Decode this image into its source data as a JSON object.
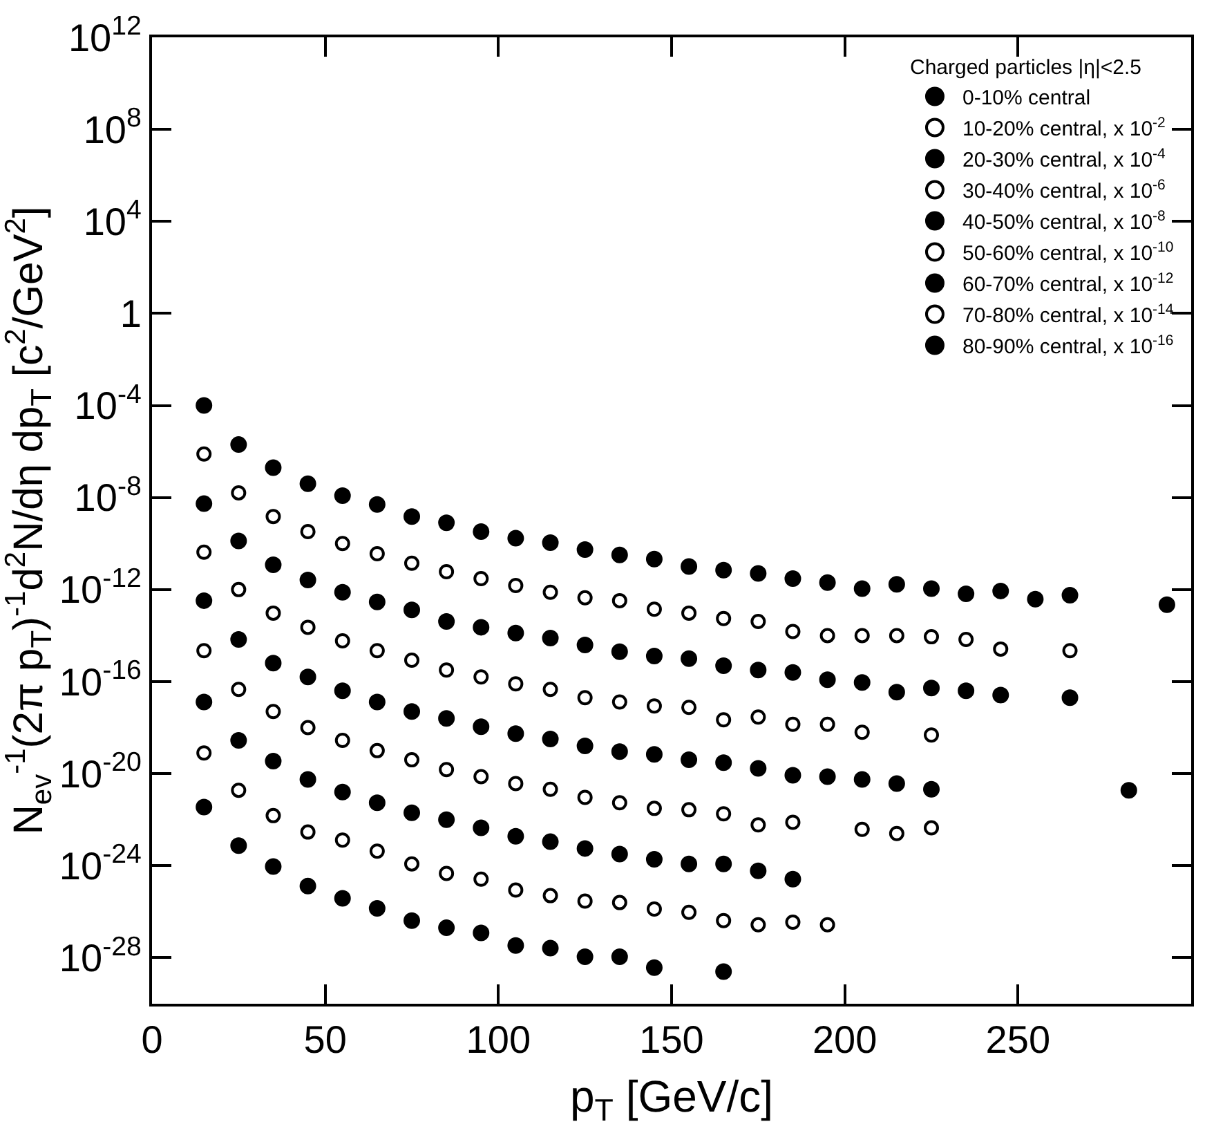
{
  "chart_data": {
    "type": "scatter",
    "xlabel": "p$_{T}$ [GeV/c]",
    "ylabel": "N$_{ev}$$^{-1}$(2π p$_{T}$)$^{-1}$d$^{2}$N/dη dp$_{T}$ [c$^{2}$/GeV$^{2}$]",
    "legend_title": "Charged particles |η|<2.5",
    "legend": "top right",
    "log": "y",
    "xlim": [
      0,
      300
    ],
    "xticks": [
      0,
      50,
      100,
      150,
      200,
      250
    ],
    "ylim": [
      1e-30,
      1000000000000.0
    ],
    "yticks": [
      {
        "value": 1000000000000.0,
        "label": "10$^{12}$"
      },
      {
        "value": 100000000.0,
        "label": "10$^{8}$"
      },
      {
        "value": 10000.0,
        "label": "10$^{4}$"
      },
      1,
      {
        "value": 0.0001,
        "label": "10$^{-4}$"
      },
      {
        "value": 1e-08,
        "label": "10$^{-8}$"
      },
      {
        "value": 1e-12,
        "label": "10$^{-12}$"
      },
      {
        "value": 1e-16,
        "label": "10$^{-16}$"
      },
      {
        "value": 1e-20,
        "label": "10$^{-20}$"
      },
      {
        "value": 1e-24,
        "label": "10$^{-24}$"
      },
      {
        "value": 1e-28,
        "label": "10$^{-28}$"
      }
    ],
    "series": [
      {
        "name": "0-10% central",
        "color": "#000000",
        "marker": "circle",
        "x": [
          15,
          25,
          35,
          45,
          55,
          65,
          75,
          85,
          95,
          105,
          115,
          125,
          135,
          145,
          155,
          165,
          175,
          185,
          195,
          205,
          215,
          225,
          235,
          245,
          255,
          265,
          293
        ],
        "values": [
          0.0001,
          2e-06,
          2e-07,
          4e-08,
          1.2e-08,
          5e-09,
          1.5e-09,
          8e-10,
          3.3e-10,
          1.7e-10,
          1.1e-10,
          5.5e-11,
          3.2e-11,
          2.1e-11,
          1e-11,
          7e-12,
          5e-12,
          3e-12,
          2e-12,
          1.1e-12,
          1.7e-12,
          1.1e-12,
          6.5e-13,
          8.7e-13,
          3.8e-13,
          5.7e-13,
          2.2e-13
        ]
      },
      {
        "name": "10-20% central, x 10$^{-2}$",
        "color": "#000000",
        "marker": "circle-open",
        "x": [
          15,
          25,
          35,
          45,
          55,
          65,
          75,
          85,
          95,
          105,
          115,
          125,
          135,
          145,
          155,
          165,
          175,
          185,
          195,
          205,
          215,
          225,
          235,
          245,
          265
        ],
        "values": [
          7.8e-07,
          1.6e-08,
          1.5e-09,
          3.3e-10,
          1e-10,
          3.6e-11,
          1.4e-11,
          6e-12,
          3e-12,
          1.5e-12,
          7.6e-13,
          4.4e-13,
          3.3e-13,
          1.4e-13,
          9.5e-14,
          5.5e-14,
          4.1e-14,
          1.5e-14,
          1e-14,
          1e-14,
          1e-14,
          8.9e-15,
          6.8e-15,
          2.6e-15,
          2.2e-15
        ]
      },
      {
        "name": "20-30% central, x 10$^{-4}$",
        "color": "#000000",
        "marker": "circle",
        "x": [
          15,
          25,
          35,
          45,
          55,
          65,
          75,
          85,
          95,
          105,
          115,
          125,
          135,
          145,
          155,
          165,
          175,
          185,
          195,
          205,
          215,
          225,
          235,
          245,
          265
        ],
        "values": [
          5.4e-09,
          1.3e-10,
          1.2e-11,
          2.6e-12,
          7.6e-13,
          2.9e-13,
          1.3e-13,
          4.1e-14,
          2.3e-14,
          1.3e-14,
          7.8e-15,
          3.9e-15,
          2e-15,
          1.3e-15,
          1e-15,
          4.9e-16,
          3.2e-16,
          2.5e-16,
          1.2e-16,
          9.2e-17,
          3.5e-17,
          5.3e-17,
          4e-17,
          2.6e-17,
          2e-17
        ]
      },
      {
        "name": "30-40% central, x 10$^{-6}$",
        "color": "#000000",
        "marker": "circle-open",
        "x": [
          15,
          25,
          35,
          45,
          55,
          65,
          75,
          85,
          95,
          105,
          115,
          125,
          135,
          145,
          155,
          165,
          175,
          185,
          195,
          205,
          225
        ],
        "values": [
          4.2e-11,
          1e-12,
          9.5e-14,
          2.3e-14,
          5.9e-15,
          2.2e-15,
          8.5e-16,
          3.2e-16,
          1.6e-16,
          8e-17,
          4.6e-17,
          2e-17,
          1.3e-17,
          8.7e-18,
          7.6e-18,
          2.2e-18,
          2.9e-18,
          1.4e-18,
          1.4e-18,
          6.3e-19,
          4.8e-19
        ]
      },
      {
        "name": "40-50% central, x 10$^{-8}$",
        "color": "#000000",
        "marker": "circle",
        "x": [
          15,
          25,
          35,
          45,
          55,
          65,
          75,
          85,
          95,
          105,
          115,
          125,
          135,
          145,
          155,
          165,
          175,
          185,
          195,
          205,
          215,
          225,
          282
        ],
        "values": [
          3.3e-13,
          6.8e-15,
          6.4e-16,
          1.6e-16,
          4e-17,
          1.3e-17,
          5e-18,
          2.5e-18,
          1.1e-18,
          5.5e-19,
          3.2e-19,
          1.6e-19,
          9.1e-20,
          6.9e-20,
          4e-20,
          3e-20,
          1.7e-20,
          8.5e-21,
          7.4e-21,
          5.6e-21,
          3.7e-21,
          2.1e-21,
          1.9e-21
        ]
      },
      {
        "name": "50-60% central, x 10$^{-10}$",
        "color": "#000000",
        "marker": "circle-open",
        "x": [
          15,
          25,
          35,
          45,
          55,
          65,
          75,
          85,
          95,
          105,
          115,
          125,
          135,
          145,
          155,
          165,
          175,
          185,
          205,
          215,
          225
        ],
        "values": [
          2.2e-15,
          4.6e-17,
          5e-18,
          1e-18,
          2.8e-19,
          1e-19,
          4e-20,
          1.5e-20,
          7.4e-21,
          3.7e-21,
          2.1e-21,
          9.3e-22,
          5.4e-22,
          3.1e-22,
          2.7e-22,
          1.8e-22,
          5.9e-23,
          7.7e-23,
          3.8e-23,
          2.5e-23,
          4.4e-23
        ]
      },
      {
        "name": "60-70% central, x 10$^{-12}$",
        "color": "#000000",
        "marker": "circle",
        "x": [
          15,
          25,
          35,
          45,
          55,
          65,
          75,
          85,
          95,
          105,
          115,
          125,
          135,
          145,
          155,
          165,
          175,
          185
        ],
        "values": [
          1.3e-17,
          2.8e-19,
          3.5e-20,
          5.6e-21,
          1.6e-21,
          5.4e-22,
          2e-22,
          1e-22,
          4.4e-23,
          1.9e-23,
          1.1e-23,
          5.6e-24,
          3.2e-24,
          1.9e-24,
          1.2e-24,
          1.2e-24,
          6e-25,
          2.6e-25
        ]
      },
      {
        "name": "70-80% central, x 10$^{-14}$",
        "color": "#000000",
        "marker": "circle-open",
        "x": [
          15,
          25,
          35,
          45,
          55,
          65,
          75,
          85,
          95,
          105,
          115,
          125,
          135,
          145,
          155,
          165,
          175,
          185,
          195
        ],
        "values": [
          7.9e-20,
          1.9e-21,
          1.5e-22,
          2.9e-23,
          1.3e-23,
          4.3e-24,
          1.2e-24,
          4.6e-25,
          2.6e-25,
          8.7e-26,
          5e-26,
          2.9e-26,
          2.5e-26,
          1.3e-26,
          9.4e-27,
          4.1e-27,
          2.7e-27,
          3.5e-27,
          2.7e-27
        ]
      },
      {
        "name": "80-90% central, x 10$^{-16}$",
        "color": "#000000",
        "marker": "circle",
        "x": [
          15,
          25,
          35,
          45,
          55,
          65,
          75,
          85,
          95,
          105,
          115,
          125,
          135,
          145,
          165
        ],
        "values": [
          3.5e-22,
          7.4e-24,
          9.2e-25,
          1.3e-25,
          3.8e-26,
          1.4e-26,
          4.1e-27,
          2e-27,
          1.2e-27,
          3.4e-28,
          2.6e-28,
          1.1e-28,
          1.1e-28,
          3.7e-29,
          2.5e-29
        ]
      }
    ]
  }
}
